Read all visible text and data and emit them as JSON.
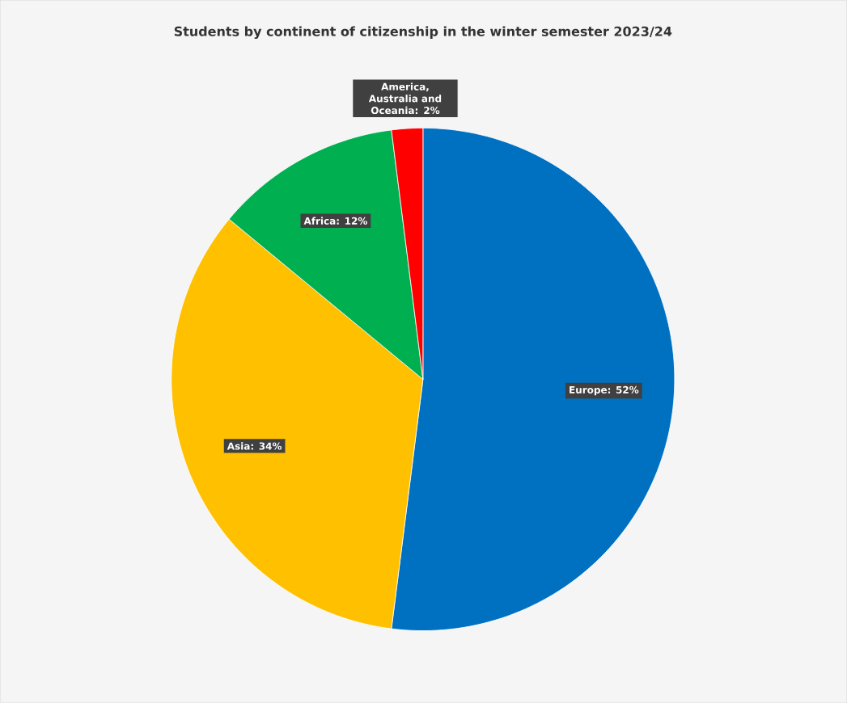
{
  "chart_data": {
    "type": "pie",
    "title": "Students by continent of citizenship in the winter semester 2023/24",
    "categories": [
      "Europe",
      "Asia",
      "Africa",
      "America, Australia and Oceania"
    ],
    "values": [
      52,
      34,
      12,
      2
    ],
    "value_labels": [
      ": 52%",
      ": 34%",
      ": 12%",
      ": 2%"
    ],
    "colors": [
      "#0070c0",
      "#ffc000",
      "#00b050",
      "#ff0000"
    ]
  }
}
